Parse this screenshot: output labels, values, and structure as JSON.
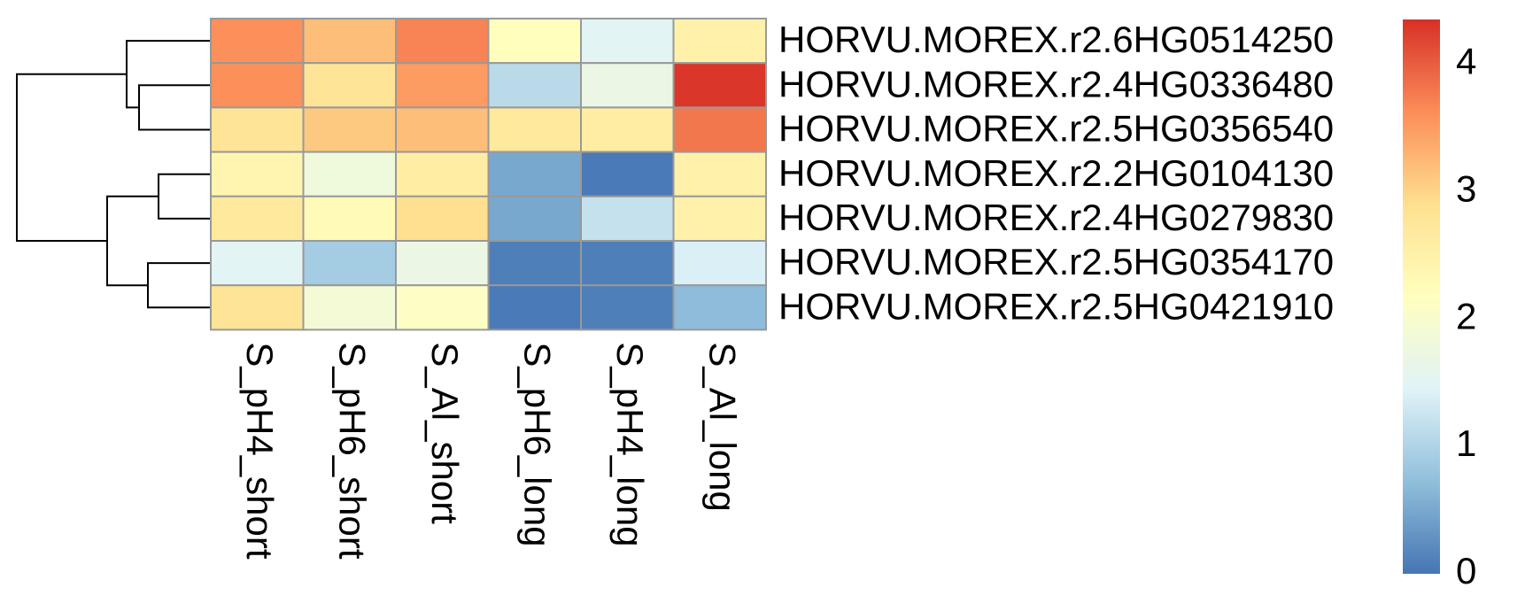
{
  "chart_data": {
    "type": "heatmap",
    "rows": [
      "HORVU.MOREX.r2.6HG0514250",
      "HORVU.MOREX.r2.4HG0336480",
      "HORVU.MOREX.r2.5HG0356540",
      "HORVU.MOREX.r2.2HG0104130",
      "HORVU.MOREX.r2.4HG0279830",
      "HORVU.MOREX.r2.5HG0354170",
      "HORVU.MOREX.r2.5HG0421910"
    ],
    "columns": [
      "S_pH4_short",
      "S_pH6_short",
      "S_Al_short",
      "S_pH6_long",
      "S_pH4_long",
      "S_Al_long"
    ],
    "values": [
      [
        3.6,
        3.2,
        3.7,
        2.2,
        1.5,
        2.5
      ],
      [
        3.6,
        2.8,
        3.5,
        1.1,
        1.7,
        4.3
      ],
      [
        2.8,
        3.1,
        3.2,
        2.7,
        2.6,
        3.8
      ],
      [
        2.4,
        1.8,
        2.6,
        0.5,
        0.05,
        2.5
      ],
      [
        2.7,
        2.3,
        2.9,
        0.5,
        1.2,
        2.5
      ],
      [
        1.5,
        0.9,
        1.7,
        0.1,
        0.1,
        1.4
      ],
      [
        2.8,
        1.9,
        2.1,
        0.05,
        0.1,
        0.7
      ]
    ],
    "colors": [
      "#4575b4",
      "#91bfdb",
      "#e0f3f8",
      "#ffffbf",
      "#fee090",
      "#fc8d59",
      "#d73027"
    ],
    "zlim": [
      0,
      4.35
    ],
    "zticks": [
      0,
      1,
      2,
      3,
      4
    ]
  }
}
